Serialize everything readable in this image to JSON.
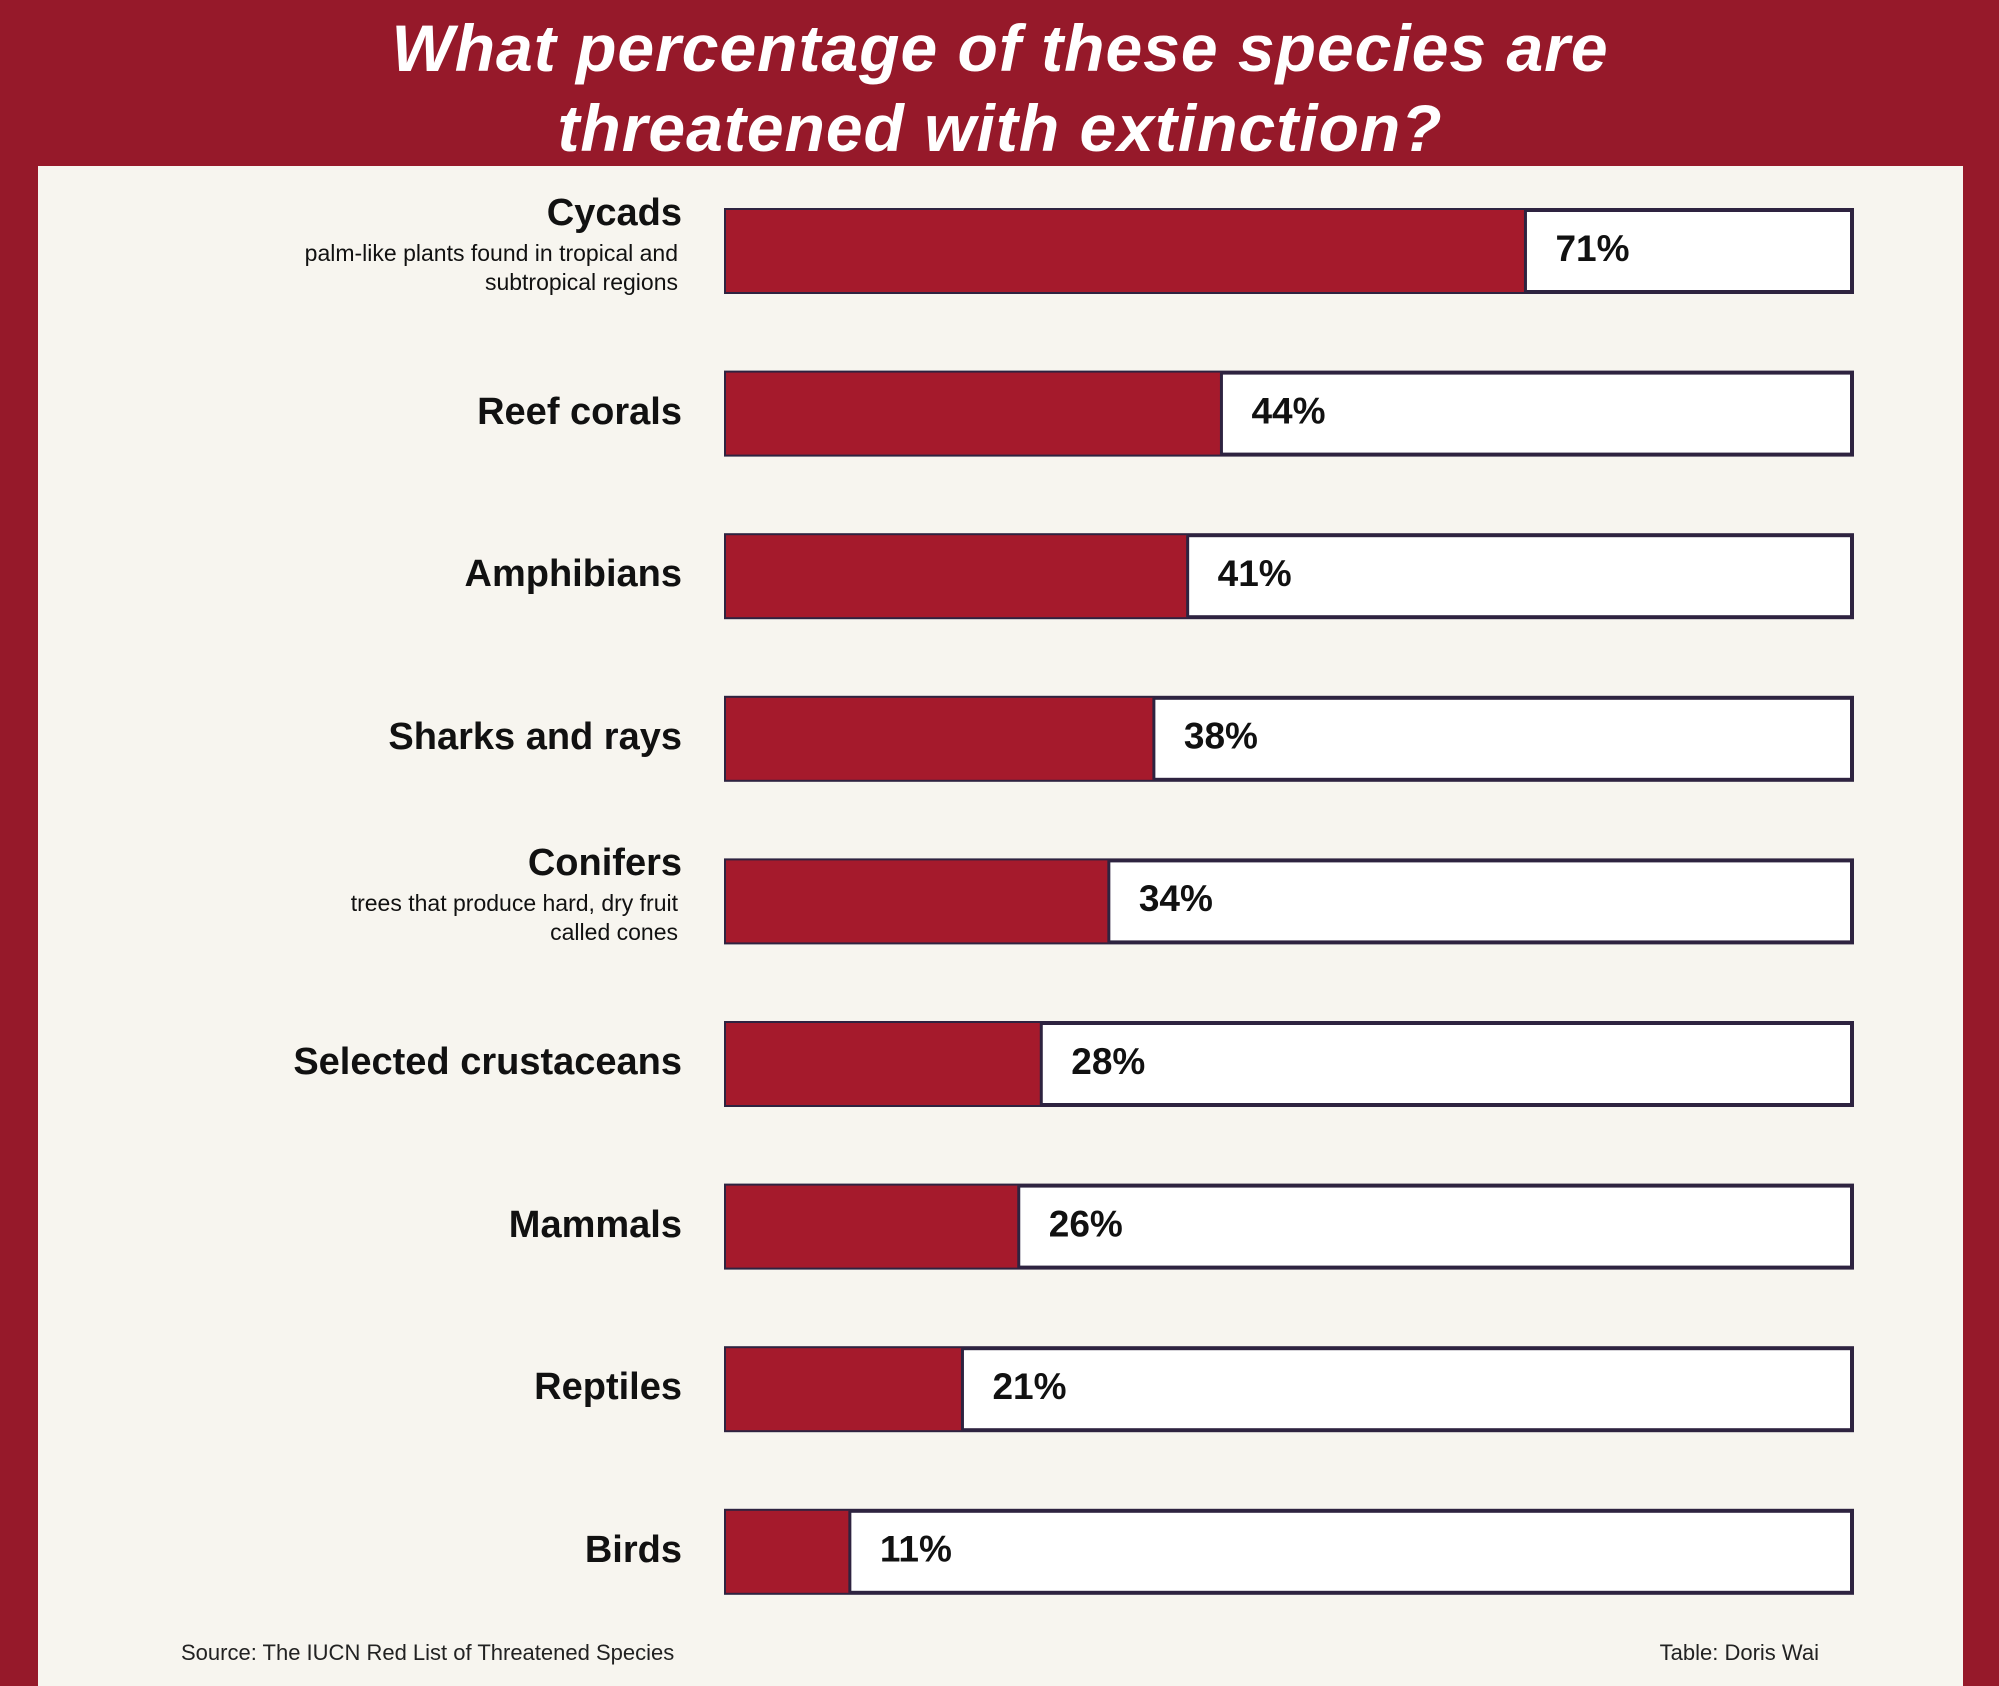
{
  "chart_data": {
    "type": "bar",
    "orientation": "horizontal",
    "title": "What percentage of these species are threatened with extinction?",
    "categories": [
      "Cycads",
      "Reef corals",
      "Amphibians",
      "Sharks and rays",
      "Conifers",
      "Selected crustaceans",
      "Mammals",
      "Reptiles",
      "Birds"
    ],
    "descriptions": [
      "palm-like plants found in tropical and subtropical regions",
      null,
      null,
      null,
      "trees that produce hard, dry fruit called cones",
      null,
      null,
      null,
      null
    ],
    "values": [
      71,
      44,
      41,
      38,
      34,
      28,
      26,
      21,
      11
    ],
    "value_labels": [
      "71%",
      "44%",
      "41%",
      "38%",
      "34%",
      "28%",
      "26%",
      "21%",
      "11%"
    ],
    "xlim": [
      0,
      100
    ],
    "color": "#a51a2c",
    "source": "Source: The IUCN Red List of Threatened Species",
    "credit": "Table: Doris Wai"
  }
}
